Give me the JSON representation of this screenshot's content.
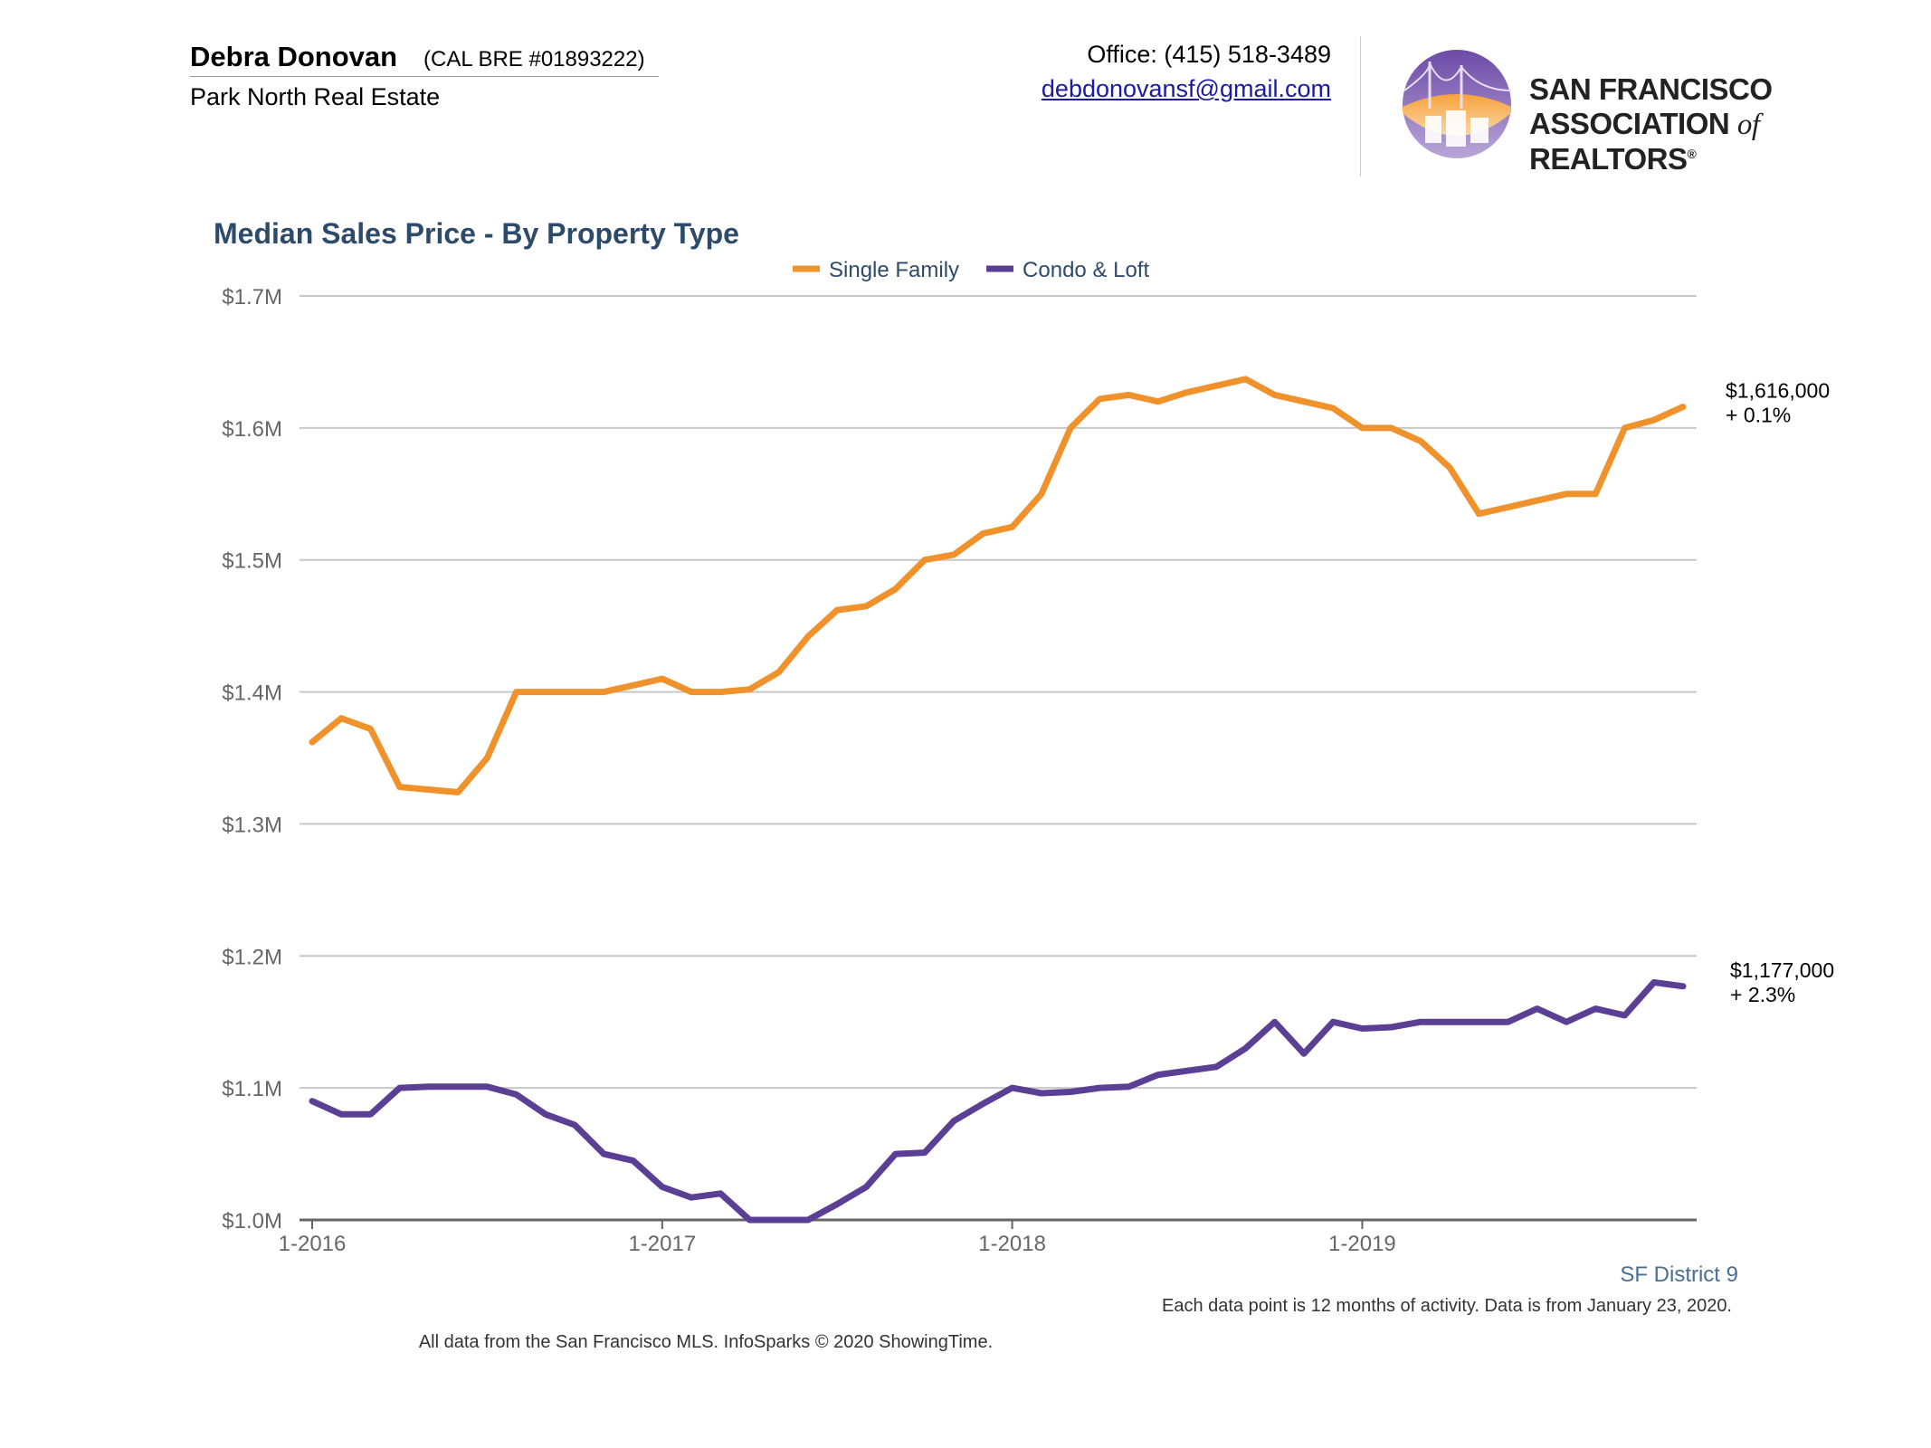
{
  "header": {
    "agent_name": "Debra Donovan",
    "license": "(CAL BRE #01893222)",
    "company": "Park North Real Estate",
    "office_phone": "Office: (415) 518-3489",
    "email": "debdonovansf@gmail.com",
    "org_line1": "SAN FRANCISCO",
    "org_line2_a": "ASSOCIATION ",
    "org_line2_of": "of",
    "org_line2_b": " REALTORS",
    "org_mark": "®"
  },
  "footer": {
    "region": "SF District 9",
    "note": "Each data point is 12 months of activity. Data is from January 23, 2020.",
    "source": "All data from the San Francisco MLS. InfoSparks © 2020 ShowingTime."
  },
  "chart_data": {
    "type": "line",
    "title": "Median Sales Price - By Property Type",
    "xlabel": "",
    "ylabel": "",
    "ylim": [
      1000000,
      1700000
    ],
    "y_ticks": [
      {
        "value": 1000000,
        "label": "$1.0M"
      },
      {
        "value": 1100000,
        "label": "$1.1M"
      },
      {
        "value": 1200000,
        "label": "$1.2M"
      },
      {
        "value": 1300000,
        "label": "$1.3M"
      },
      {
        "value": 1400000,
        "label": "$1.4M"
      },
      {
        "value": 1500000,
        "label": "$1.5M"
      },
      {
        "value": 1600000,
        "label": "$1.6M"
      },
      {
        "value": 1700000,
        "label": "$1.7M"
      }
    ],
    "x_ticks": [
      {
        "index": 0,
        "label": "1-2016"
      },
      {
        "index": 12,
        "label": "1-2017"
      },
      {
        "index": 24,
        "label": "1-2018"
      },
      {
        "index": 36,
        "label": "1-2019"
      }
    ],
    "grid": true,
    "legend": "top-center",
    "series": [
      {
        "name": "Single Family",
        "color": "#F0922C",
        "values": [
          1362000,
          1380000,
          1372000,
          1328000,
          1326000,
          1324000,
          1350000,
          1400000,
          1400000,
          1400000,
          1400000,
          1405000,
          1410000,
          1400000,
          1400000,
          1402000,
          1415000,
          1442000,
          1462000,
          1465000,
          1478000,
          1500000,
          1504000,
          1520000,
          1525000,
          1550000,
          1600000,
          1622000,
          1625000,
          1620000,
          1627000,
          1632000,
          1637000,
          1625000,
          1620000,
          1615000,
          1600000,
          1600000,
          1590000,
          1570000,
          1535000,
          1540000,
          1545000,
          1550000,
          1550000,
          1600000,
          1606000,
          1616000
        ],
        "end_label": "$1,616,000",
        "end_change": "+ 0.1%"
      },
      {
        "name": "Condo & Loft",
        "color": "#5B3F95",
        "values": [
          1090000,
          1080000,
          1080000,
          1100000,
          1101000,
          1101000,
          1101000,
          1095000,
          1080000,
          1072000,
          1050000,
          1045000,
          1025000,
          1017000,
          1020000,
          1000000,
          1000000,
          1000000,
          1012000,
          1025000,
          1050000,
          1051000,
          1075000,
          1088000,
          1100000,
          1096000,
          1097000,
          1100000,
          1101000,
          1110000,
          1113000,
          1116000,
          1130000,
          1150000,
          1126000,
          1150000,
          1145000,
          1146000,
          1150000,
          1150000,
          1150000,
          1150000,
          1160000,
          1150000,
          1160000,
          1155000,
          1180000,
          1177000
        ],
        "end_label": "$1,177,000",
        "end_change": "+ 2.3%"
      }
    ]
  }
}
